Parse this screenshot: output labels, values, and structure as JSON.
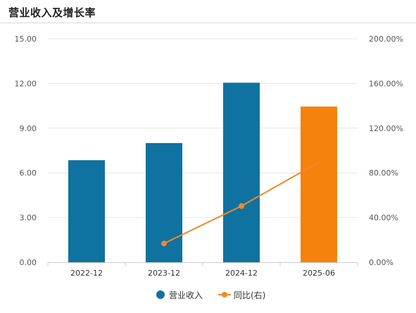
{
  "header": {
    "title": "营业收入及增长率"
  },
  "chart_data": {
    "type": "bar",
    "categories": [
      "2022-12",
      "2023-12",
      "2024-12",
      "2025-06"
    ],
    "series": [
      {
        "name": "营业收入",
        "type": "bar",
        "axis": "left",
        "values": [
          6.85,
          8.0,
          12.05,
          10.45
        ],
        "colors": [
          "#0f72a0",
          "#0f72a0",
          "#0f72a0",
          "#f5820d"
        ]
      },
      {
        "name": "同比(右)",
        "type": "line",
        "axis": "right",
        "values": [
          null,
          16.8,
          50.3,
          89.5
        ],
        "color": "#f0892a"
      }
    ],
    "y_left": {
      "min": 0,
      "max": 15,
      "ticks": [
        "0.00",
        "3.00",
        "6.00",
        "9.00",
        "12.00",
        "15.00"
      ]
    },
    "y_right": {
      "min": 0,
      "max": 200,
      "ticks": [
        "0.00%",
        "40.00%",
        "80.00%",
        "120.00%",
        "160.00%",
        "200.00%"
      ]
    },
    "grid": true,
    "legend_position": "bottom"
  },
  "legend": {
    "items": [
      {
        "label": "营业收入",
        "color": "#0f72a0"
      },
      {
        "label": "同比(右)",
        "color": "#f0892a"
      }
    ]
  }
}
